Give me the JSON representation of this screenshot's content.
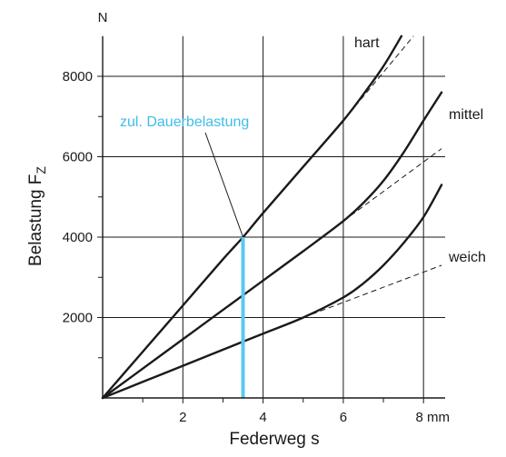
{
  "chart_data": {
    "type": "line",
    "title": "",
    "xlabel": "Federweg s",
    "x_unit": "mm",
    "ylabel": "Belastung F",
    "ylabel_sub": "Z",
    "y_unit": "N",
    "xlim": [
      0,
      8.9
    ],
    "ylim": [
      0,
      9000
    ],
    "x_ticks": [
      2,
      4,
      6,
      8
    ],
    "x_minor_ticks": [
      1,
      3,
      5,
      7
    ],
    "y_ticks": [
      2000,
      4000,
      6000,
      8000
    ],
    "y_minor_ticks": [
      1000,
      3000,
      5000,
      7000
    ],
    "grid": true,
    "colors": {
      "curve": "#1a1a1a",
      "grid": "#1a1a1a",
      "highlight": "#5bc8ef",
      "annotation_text": "#3fbde9"
    },
    "series": [
      {
        "name": "hart",
        "points": [
          [
            0,
            0
          ],
          [
            1,
            1150
          ],
          [
            2,
            2300
          ],
          [
            3,
            3450
          ],
          [
            3.5,
            4000
          ],
          [
            4,
            4600
          ],
          [
            5,
            5750
          ],
          [
            6,
            6900
          ],
          [
            6.5,
            7550
          ],
          [
            7,
            8250
          ],
          [
            7.45,
            9000
          ]
        ],
        "linear_extension": [
          [
            6,
            6900
          ],
          [
            7.75,
            9000
          ]
        ]
      },
      {
        "name": "mittel",
        "points": [
          [
            0,
            0
          ],
          [
            1,
            730
          ],
          [
            2,
            1460
          ],
          [
            3,
            2190
          ],
          [
            4,
            2920
          ],
          [
            5,
            3650
          ],
          [
            6,
            4400
          ],
          [
            6.5,
            4850
          ],
          [
            7,
            5400
          ],
          [
            7.5,
            6100
          ],
          [
            8,
            6900
          ],
          [
            8.45,
            7600
          ]
        ],
        "linear_extension": [
          [
            6,
            4400
          ],
          [
            8.45,
            6200
          ]
        ]
      },
      {
        "name": "weich",
        "points": [
          [
            0,
            0
          ],
          [
            1,
            400
          ],
          [
            2,
            800
          ],
          [
            3,
            1200
          ],
          [
            4,
            1600
          ],
          [
            5,
            2000
          ],
          [
            6,
            2500
          ],
          [
            6.5,
            2850
          ],
          [
            7,
            3300
          ],
          [
            7.5,
            3850
          ],
          [
            8,
            4500
          ],
          [
            8.45,
            5300
          ]
        ],
        "linear_extension": [
          [
            5,
            2000
          ],
          [
            8.45,
            3300
          ]
        ]
      }
    ],
    "annotations": [
      {
        "text": "zul. Dauerbelastung",
        "x": 3.5,
        "y": 4000
      }
    ]
  }
}
